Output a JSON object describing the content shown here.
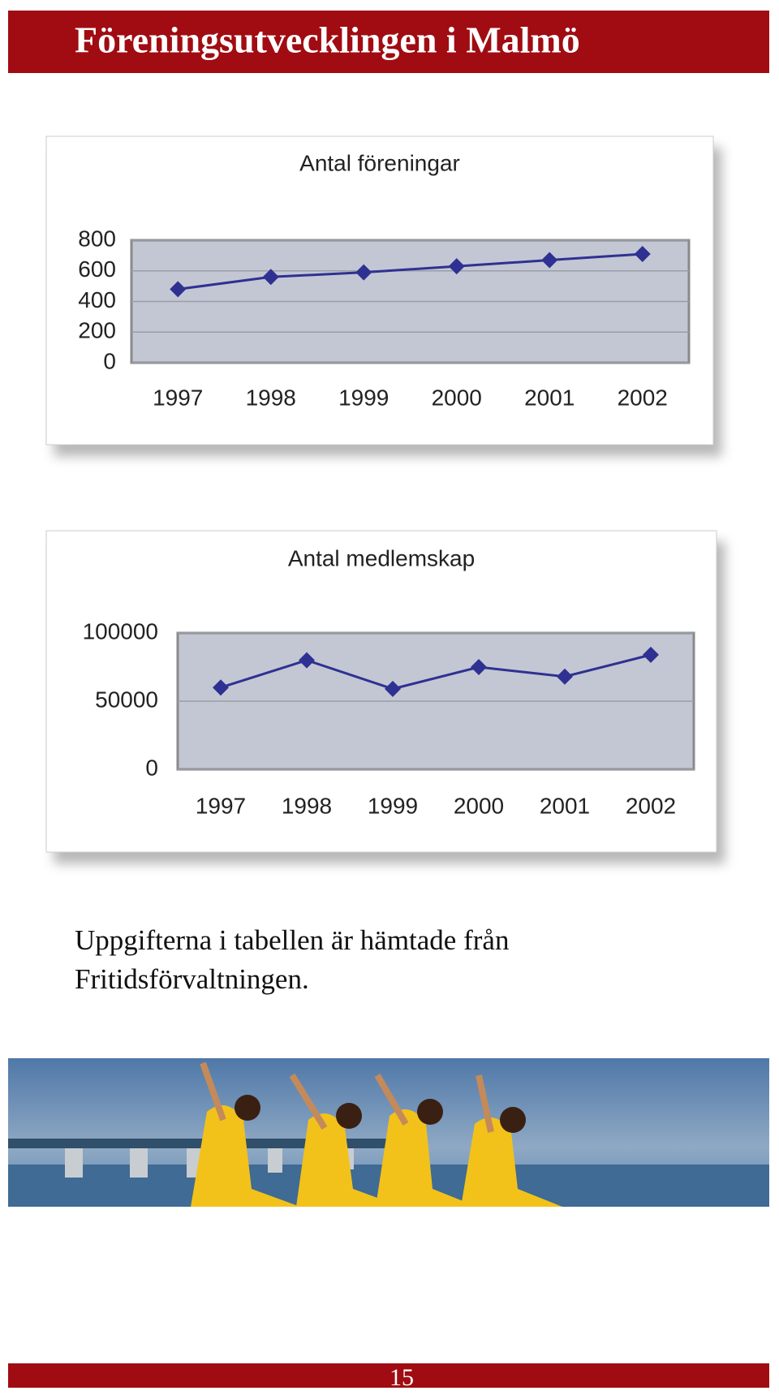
{
  "header": {
    "title": "Föreningsutvecklingen i Malmö"
  },
  "chart_data": [
    {
      "type": "line",
      "title": "Antal föreningar",
      "categories": [
        "1997",
        "1998",
        "1999",
        "2000",
        "2001",
        "2002"
      ],
      "series": [
        {
          "name": "Antal föreningar",
          "color": "#2e3192",
          "values": [
            480,
            560,
            590,
            630,
            670,
            710
          ]
        }
      ],
      "ylim": [
        0,
        800
      ],
      "yticks": [
        0,
        200,
        400,
        600,
        800
      ],
      "grid": true
    },
    {
      "type": "line",
      "title": "Antal medlemskap",
      "categories": [
        "1997",
        "1998",
        "1999",
        "2000",
        "2001",
        "2002"
      ],
      "series": [
        {
          "name": "Antal medlemskap",
          "color": "#2e3192",
          "values": [
            60000,
            80000,
            59000,
            75000,
            68000,
            84000
          ]
        }
      ],
      "ylim": [
        0,
        100000
      ],
      "yticks": [
        0,
        50000,
        100000
      ],
      "grid": true
    }
  ],
  "caption": {
    "lines": [
      "Uppgifterna i tabellen är hämtade från",
      "Fritidsförvaltningen."
    ]
  },
  "footer": {
    "page_number": "15"
  }
}
